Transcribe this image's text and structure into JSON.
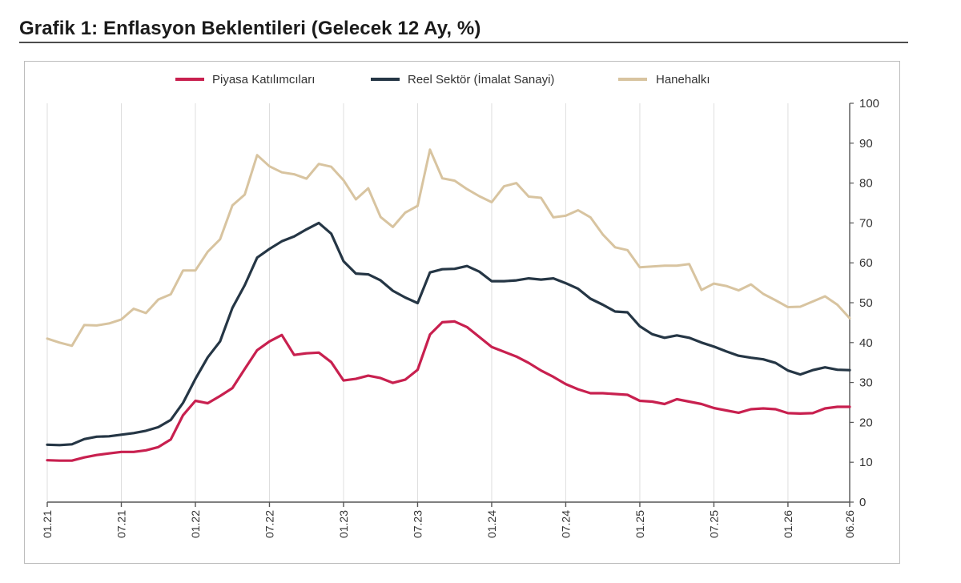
{
  "title": "Grafik 1: Enflasyon Beklentileri (Gelecek 12 Ay, %)",
  "chart_data": {
    "type": "line",
    "title": "",
    "x_tick_labels": [
      "01.21",
      "07.21",
      "01.22",
      "07.22",
      "01.23",
      "07.23",
      "01.24",
      "07.24",
      "01.25",
      "07.25",
      "01.26",
      "06.26"
    ],
    "y_ticks": [
      0,
      10,
      20,
      30,
      40,
      50,
      60,
      70,
      80,
      90,
      100
    ],
    "ylim": [
      0,
      100
    ],
    "grid": "vertical",
    "legend_position": "top-center",
    "colors": {
      "piyasa": "#c8204f",
      "reel": "#253645",
      "hane": "#d8c4a0",
      "grid": "#dedede",
      "axis": "#555555"
    },
    "series": [
      {
        "name": "Piyasa Katılımcıları",
        "key": "piyasa",
        "values": [
          10.5,
          10.4,
          10.4,
          11.2,
          11.8,
          12.2,
          12.6,
          12.6,
          13.0,
          13.8,
          15.7,
          21.8,
          25.4,
          24.8,
          26.6,
          28.6,
          33.4,
          38.1,
          40.3,
          41.9,
          36.9,
          37.3,
          37.5,
          35.1,
          30.5,
          30.9,
          31.7,
          31.1,
          29.9,
          30.7,
          33.2,
          42.0,
          45.1,
          45.3,
          43.9,
          41.4,
          38.9,
          37.7,
          36.5,
          34.9,
          33.0,
          31.4,
          29.6,
          28.3,
          27.3,
          27.3,
          27.1,
          26.9,
          25.4,
          25.2,
          24.6,
          25.8,
          25.2,
          24.6,
          23.6,
          23.0,
          22.4,
          23.3,
          23.5,
          23.3,
          22.3,
          22.2,
          22.3,
          23.5,
          23.9,
          23.9
        ]
      },
      {
        "name": "Reel Sektör (İmalat Sanayi)",
        "key": "reel",
        "values": [
          14.4,
          14.3,
          14.5,
          15.8,
          16.4,
          16.5,
          16.9,
          17.3,
          17.9,
          18.8,
          20.6,
          24.9,
          30.9,
          36.3,
          40.3,
          48.7,
          54.4,
          61.3,
          63.5,
          65.4,
          66.6,
          68.4,
          70.0,
          67.3,
          60.4,
          57.3,
          57.1,
          55.6,
          53.0,
          51.3,
          49.9,
          57.6,
          58.4,
          58.5,
          59.2,
          57.8,
          55.4,
          55.4,
          55.6,
          56.1,
          55.8,
          56.1,
          54.9,
          53.5,
          51.0,
          49.5,
          47.8,
          47.6,
          44.1,
          42.1,
          41.2,
          41.8,
          41.2,
          40.0,
          39.0,
          37.8,
          36.7,
          36.2,
          35.8,
          34.9,
          33.0,
          32.0,
          33.1,
          33.8,
          33.2,
          33.1
        ]
      },
      {
        "name": "Hanehalkı",
        "key": "hane",
        "values": [
          41.0,
          40.0,
          39.2,
          44.4,
          44.3,
          44.8,
          45.8,
          48.5,
          47.4,
          50.8,
          52.1,
          58.1,
          58.1,
          62.8,
          65.9,
          74.4,
          77.1,
          87.0,
          84.2,
          82.7,
          82.2,
          81.1,
          84.8,
          84.1,
          80.7,
          75.9,
          78.7,
          71.5,
          69.0,
          72.6,
          74.3,
          88.4,
          81.2,
          80.6,
          78.5,
          76.7,
          75.2,
          79.2,
          80.0,
          76.6,
          76.3,
          71.4,
          71.8,
          73.2,
          71.4,
          67.1,
          63.9,
          63.2,
          58.9,
          59.1,
          59.3,
          59.3,
          59.7,
          53.2,
          54.8,
          54.2,
          53.1,
          54.6,
          52.2,
          50.6,
          48.9,
          49.0,
          50.3,
          51.6,
          49.5,
          46.1
        ]
      }
    ]
  }
}
